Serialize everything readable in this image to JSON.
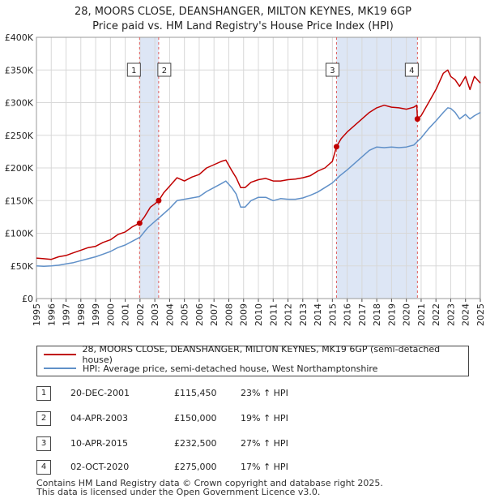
{
  "title_line1": "28, MOORS CLOSE, DEANSHANGER, MILTON KEYNES, MK19 6GP",
  "title_line2": "Price paid vs. HM Land Registry's House Price Index (HPI)",
  "colors": {
    "property": "#c00000",
    "hpi": "#6090c8",
    "shade": "#dde6f5",
    "marker_line": "#e06060"
  },
  "chart_data": {
    "type": "line",
    "title": "Price paid vs. HM Land Registry's House Price Index (HPI)",
    "xlabel": "",
    "ylabel": "",
    "xlim": [
      1995,
      2025
    ],
    "ylim": [
      0,
      400000
    ],
    "y_ticks": [
      {
        "value": 0,
        "label": "£0"
      },
      {
        "value": 50000,
        "label": "£50K"
      },
      {
        "value": 100000,
        "label": "£100K"
      },
      {
        "value": 150000,
        "label": "£150K"
      },
      {
        "value": 200000,
        "label": "£200K"
      },
      {
        "value": 250000,
        "label": "£250K"
      },
      {
        "value": 300000,
        "label": "£300K"
      },
      {
        "value": 350000,
        "label": "£350K"
      },
      {
        "value": 400000,
        "label": "£400K"
      }
    ],
    "x_ticks": [
      "1995",
      "1996",
      "1997",
      "1998",
      "1999",
      "2000",
      "2001",
      "2002",
      "2003",
      "2004",
      "2005",
      "2006",
      "2007",
      "2008",
      "2009",
      "2010",
      "2011",
      "2012",
      "2013",
      "2014",
      "2015",
      "2016",
      "2017",
      "2018",
      "2019",
      "2020",
      "2021",
      "2022",
      "2023",
      "2024",
      "2025"
    ],
    "grid": true,
    "shaded_ranges": [
      [
        2001.97,
        2003.26
      ],
      [
        2015.28,
        2020.75
      ]
    ],
    "series": [
      {
        "name": "28, MOORS CLOSE, DEANSHANGER, MILTON KEYNES, MK19 6GP (semi-detached house)",
        "color": "#c00000",
        "x": [
          1995.0,
          1995.5,
          1996.0,
          1996.5,
          1997.0,
          1997.5,
          1998.0,
          1998.5,
          1999.0,
          1999.5,
          2000.0,
          2000.5,
          2001.0,
          2001.5,
          2001.97,
          2002.3,
          2002.7,
          2003.0,
          2003.26,
          2003.6,
          2004.0,
          2004.5,
          2005.0,
          2005.5,
          2006.0,
          2006.5,
          2007.0,
          2007.5,
          2007.8,
          2008.2,
          2008.5,
          2008.8,
          2009.1,
          2009.5,
          2010.0,
          2010.5,
          2011.0,
          2011.5,
          2012.0,
          2012.5,
          2013.0,
          2013.5,
          2014.0,
          2014.5,
          2015.0,
          2015.28,
          2015.6,
          2016.0,
          2016.5,
          2017.0,
          2017.5,
          2018.0,
          2018.5,
          2019.0,
          2019.5,
          2020.0,
          2020.5,
          2020.7,
          2020.75,
          2021.0,
          2021.5,
          2022.0,
          2022.5,
          2022.8,
          2023.0,
          2023.3,
          2023.6,
          2024.0,
          2024.3,
          2024.6,
          2025.0
        ],
        "values": [
          62000,
          61000,
          60000,
          64000,
          66000,
          70000,
          74000,
          78000,
          80000,
          86000,
          90000,
          98000,
          102000,
          110000,
          115450,
          125000,
          140000,
          145000,
          150000,
          162000,
          172000,
          185000,
          180000,
          186000,
          190000,
          200000,
          205000,
          210000,
          212000,
          196000,
          185000,
          170000,
          170000,
          178000,
          182000,
          184000,
          180000,
          180000,
          182000,
          183000,
          185000,
          188000,
          195000,
          200000,
          210000,
          232500,
          245000,
          255000,
          265000,
          275000,
          285000,
          292000,
          296000,
          293000,
          292000,
          290000,
          293000,
          296000,
          275000,
          280000,
          300000,
          320000,
          345000,
          350000,
          340000,
          335000,
          325000,
          340000,
          320000,
          340000,
          330000
        ]
      },
      {
        "name": "HPI: Average price, semi-detached house, West Northamptonshire",
        "color": "#6090c8",
        "x": [
          1995.0,
          1995.5,
          1996.0,
          1996.5,
          1997.0,
          1997.5,
          1998.0,
          1998.5,
          1999.0,
          1999.5,
          2000.0,
          2000.5,
          2001.0,
          2001.5,
          2002.0,
          2002.5,
          2003.0,
          2003.5,
          2004.0,
          2004.5,
          2005.0,
          2005.5,
          2006.0,
          2006.5,
          2007.0,
          2007.5,
          2007.8,
          2008.2,
          2008.5,
          2008.8,
          2009.1,
          2009.5,
          2010.0,
          2010.5,
          2011.0,
          2011.5,
          2012.0,
          2012.5,
          2013.0,
          2013.5,
          2014.0,
          2014.5,
          2015.0,
          2015.5,
          2016.0,
          2016.5,
          2017.0,
          2017.5,
          2018.0,
          2018.5,
          2019.0,
          2019.5,
          2020.0,
          2020.5,
          2021.0,
          2021.5,
          2022.0,
          2022.5,
          2022.8,
          2023.0,
          2023.3,
          2023.6,
          2024.0,
          2024.3,
          2024.6,
          2025.0
        ],
        "values": [
          50000,
          49500,
          50000,
          51000,
          53000,
          55000,
          58000,
          61000,
          64000,
          68000,
          72000,
          78000,
          82000,
          88000,
          94000,
          108000,
          118000,
          128000,
          138000,
          150000,
          152000,
          154000,
          156000,
          164000,
          170000,
          176000,
          180000,
          170000,
          160000,
          140000,
          140000,
          150000,
          155000,
          155000,
          150000,
          153000,
          152000,
          152000,
          154000,
          158000,
          163000,
          170000,
          177000,
          188000,
          197000,
          207000,
          217000,
          227000,
          232000,
          231000,
          232000,
          231000,
          232000,
          235000,
          246000,
          260000,
          272000,
          285000,
          292000,
          291000,
          285000,
          275000,
          282000,
          275000,
          280000,
          285000
        ]
      }
    ],
    "markers": [
      {
        "label": "1",
        "x": 2001.97,
        "price": 115450
      },
      {
        "label": "2",
        "x": 2003.26,
        "price": 150000
      },
      {
        "label": "3",
        "x": 2015.28,
        "price": 232500
      },
      {
        "label": "4",
        "x": 2020.75,
        "price": 275000
      }
    ]
  },
  "legend": {
    "property_label": "28, MOORS CLOSE, DEANSHANGER, MILTON KEYNES, MK19 6GP (semi-detached house)",
    "hpi_label": "HPI: Average price, semi-detached house, West Northamptonshire"
  },
  "transactions": [
    {
      "num": "1",
      "date": "20-DEC-2001",
      "price": "£115,450",
      "hpi": "23% ↑ HPI"
    },
    {
      "num": "2",
      "date": "04-APR-2003",
      "price": "£150,000",
      "hpi": "19% ↑ HPI"
    },
    {
      "num": "3",
      "date": "10-APR-2015",
      "price": "£232,500",
      "hpi": "27% ↑ HPI"
    },
    {
      "num": "4",
      "date": "02-OCT-2020",
      "price": "£275,000",
      "hpi": "17% ↑ HPI"
    }
  ],
  "footer": {
    "line1": "Contains HM Land Registry data © Crown copyright and database right 2025.",
    "line2": "This data is licensed under the Open Government Licence v3.0."
  }
}
